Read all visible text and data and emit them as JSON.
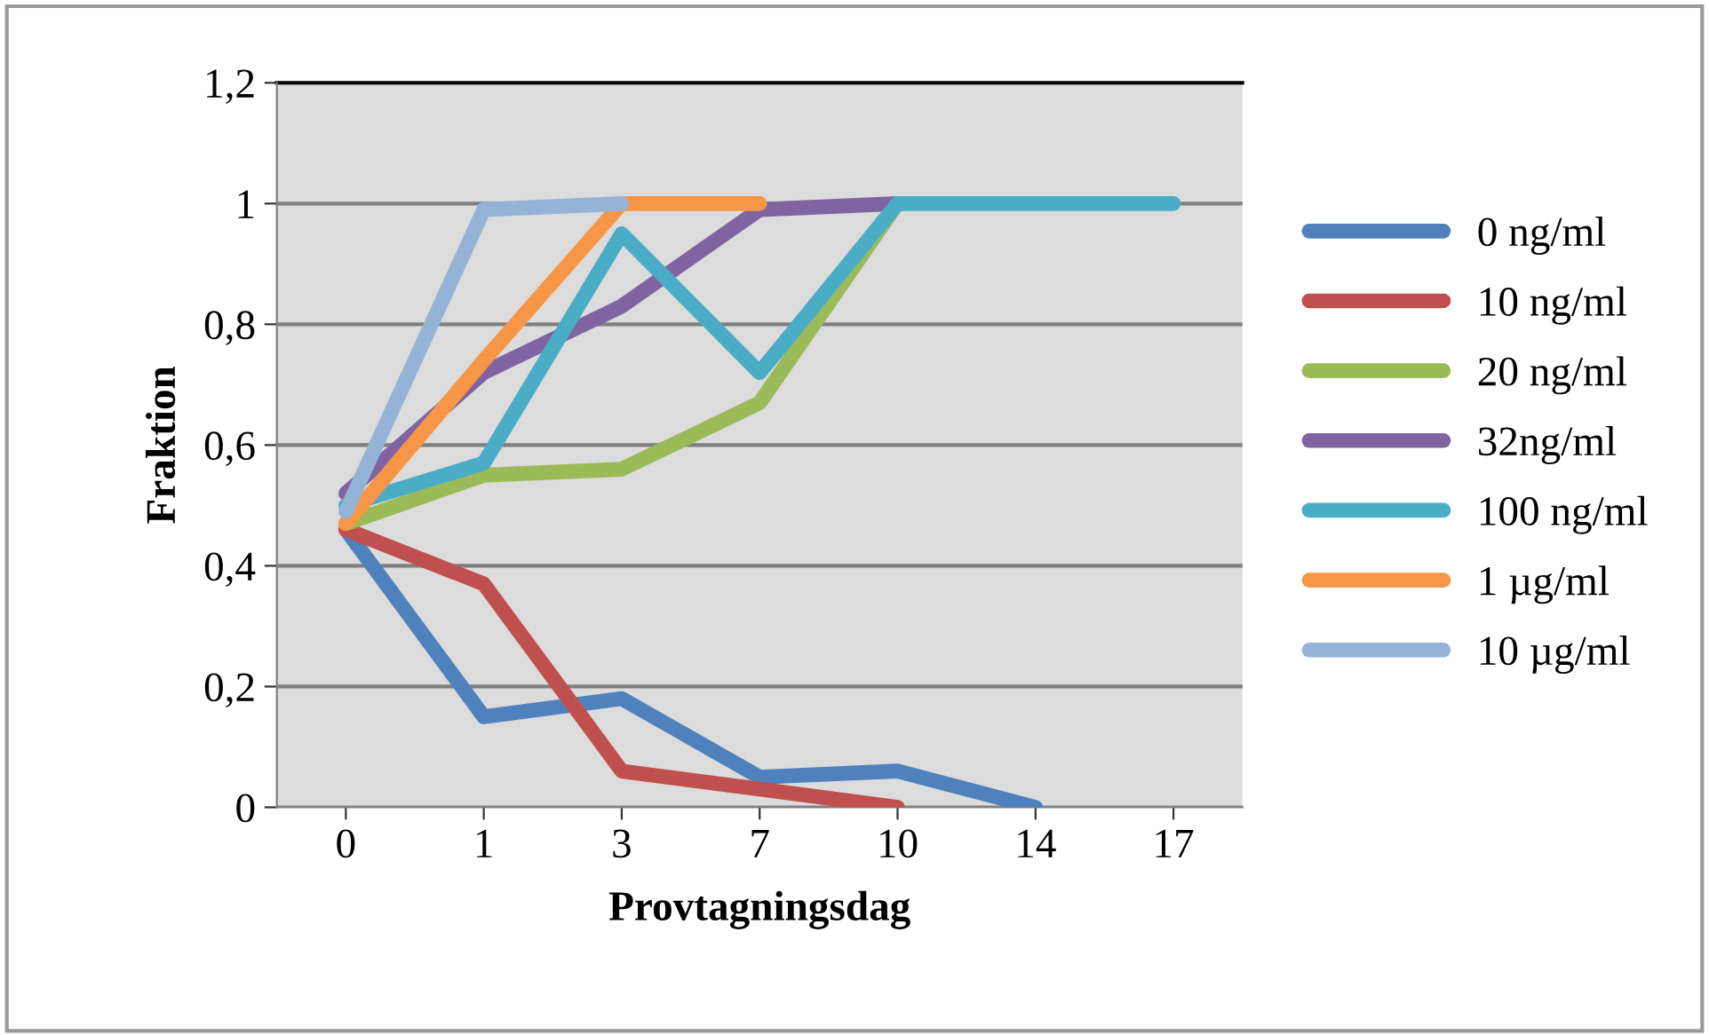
{
  "chart_data": {
    "type": "line",
    "xlabel": "Provtagningsdag",
    "ylabel": "Fraktion",
    "categories": [
      "0",
      "1",
      "3",
      "7",
      "10",
      "14",
      "17"
    ],
    "ylim": [
      0,
      1.2
    ],
    "yticks": [
      0,
      {
        "value": 0.2,
        "label": "0,2"
      },
      {
        "value": 0.4,
        "label": "0,4"
      },
      {
        "value": 0.6,
        "label": "0,6"
      },
      {
        "value": 0.8,
        "label": "0,8"
      },
      1,
      {
        "value": 1.2,
        "label": "1,2"
      }
    ],
    "grid": "y",
    "legend": "right",
    "marker": "none",
    "line_style": "solid",
    "series": [
      {
        "name": "0 ng/ml",
        "color": "#4f81bd",
        "values": [
          0.46,
          0.15,
          0.18,
          0.05,
          0.06,
          0.0,
          null
        ]
      },
      {
        "name": "10 ng/ml",
        "color": "#c0504d",
        "values": [
          0.46,
          0.37,
          0.06,
          0.03,
          0.0,
          null,
          null
        ]
      },
      {
        "name": "20 ng/ml",
        "color": "#9bbb59",
        "values": [
          0.47,
          0.55,
          0.56,
          0.67,
          1.0,
          null,
          null
        ]
      },
      {
        "name": "32ng/ml",
        "color": "#8064a2",
        "values": [
          0.52,
          0.72,
          0.83,
          0.99,
          1.0,
          null,
          null
        ]
      },
      {
        "name": "100 ng/ml",
        "color": "#4bacc6",
        "values": [
          0.5,
          0.57,
          0.95,
          0.72,
          1.0,
          1.0,
          1.0
        ]
      },
      {
        "name": "1 µg/ml",
        "color": "#f79646",
        "values": [
          0.47,
          0.74,
          1.0,
          1.0,
          null,
          null,
          null
        ]
      },
      {
        "name": "10 µg/ml",
        "color": "#95b3d7",
        "values": [
          0.49,
          0.99,
          1.0,
          null,
          null,
          null,
          null
        ]
      }
    ]
  }
}
